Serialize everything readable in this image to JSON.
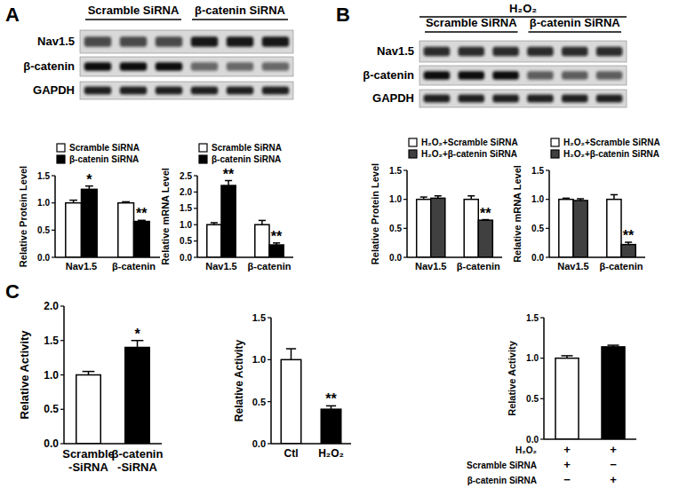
{
  "figure": {
    "panel_labels": [
      "A",
      "B",
      "C"
    ],
    "blots": [
      {
        "groups": [
          "Scramble SiRNA",
          "β-catenin SiRNA"
        ],
        "rows": [
          "Nav1.5",
          "β-catenin",
          "GAPDH"
        ]
      },
      {
        "header": "H₂O₂",
        "groups": [
          "Scramble SiRNA",
          "β-catenin SiRNA"
        ],
        "rows": [
          "Nav1.5",
          "β-catenin",
          "GAPDH"
        ]
      }
    ]
  },
  "chart_data": [
    {
      "type": "bar",
      "ylabel": "Relative Protein Level",
      "categories": [
        "Nav1.5",
        "β-catenin"
      ],
      "series": [
        {
          "name": "Scramble SiRNA",
          "color": "#ffffff",
          "values": [
            1.0,
            1.0
          ],
          "errors": [
            0.05,
            0.02
          ]
        },
        {
          "name": "β-catenin SiRNA",
          "color": "#000000",
          "values": [
            1.25,
            0.66
          ],
          "errors": [
            0.06,
            0.02
          ],
          "significance": [
            "*",
            "**"
          ]
        }
      ],
      "ylim": [
        0,
        1.5
      ],
      "yticks": [
        {
          "value": 0,
          "label": "0.0"
        },
        {
          "value": 0.5,
          "label": "0.5"
        },
        {
          "value": 1,
          "label": "1.0"
        },
        {
          "value": 1.5,
          "label": "1.5"
        }
      ],
      "legend": "upper left"
    },
    {
      "type": "bar",
      "ylabel": "Relative mRNA Level",
      "categories": [
        "Nav1.5",
        "β-catenin"
      ],
      "series": [
        {
          "name": "Scramble SiRNA",
          "color": "#ffffff",
          "values": [
            1.0,
            1.0
          ],
          "errors": [
            0.06,
            0.13
          ]
        },
        {
          "name": "β-catenin SiRNA",
          "color": "#000000",
          "values": [
            2.2,
            0.38
          ],
          "errors": [
            0.15,
            0.06
          ],
          "significance": [
            "**",
            "**"
          ]
        }
      ],
      "ylim": [
        0,
        2.5
      ],
      "yticks": [
        {
          "value": 0,
          "label": "0.0"
        },
        {
          "value": 0.5,
          "label": "0.5"
        },
        {
          "value": 1,
          "label": "1.0"
        },
        {
          "value": 1.5,
          "label": "1.5"
        },
        {
          "value": 2,
          "label": "2.0"
        },
        {
          "value": 2.5,
          "label": "2.5"
        }
      ],
      "legend": "upper left"
    },
    {
      "type": "bar",
      "ylabel": "Relative Protein Level",
      "categories": [
        "Nav1.5",
        "β-catenin"
      ],
      "series": [
        {
          "name": "H₂O₂+Scramble SiRNA",
          "color": "#ffffff",
          "values": [
            1.0,
            1.0
          ],
          "errors": [
            0.04,
            0.06
          ]
        },
        {
          "name": "H₂O₂+β-catenin SiRNA",
          "color": "#404040",
          "values": [
            1.02,
            0.64
          ],
          "errors": [
            0.04,
            0.01
          ],
          "significance": [
            null,
            "**"
          ]
        }
      ],
      "ylim": [
        0,
        1.5
      ],
      "yticks": [
        {
          "value": 0,
          "label": "0.0"
        },
        {
          "value": 0.5,
          "label": "0.5"
        },
        {
          "value": 1,
          "label": "1.0"
        },
        {
          "value": 1.5,
          "label": "1.5"
        }
      ],
      "legend": "upper left"
    },
    {
      "type": "bar",
      "ylabel": "Relative mRNA Level",
      "categories": [
        "Nav1.5",
        "β-catenin"
      ],
      "series": [
        {
          "name": "H₂O₂+Scramble SiRNA",
          "color": "#ffffff",
          "values": [
            1.0,
            1.0
          ],
          "errors": [
            0.02,
            0.08
          ]
        },
        {
          "name": "H₂O₂+β-catenin SiRNA",
          "color": "#404040",
          "values": [
            0.98,
            0.22
          ],
          "errors": [
            0.03,
            0.04
          ],
          "significance": [
            null,
            "**"
          ]
        }
      ],
      "ylim": [
        0,
        1.5
      ],
      "yticks": [
        {
          "value": 0,
          "label": "0.0"
        },
        {
          "value": 0.5,
          "label": "0.5"
        },
        {
          "value": 1,
          "label": "1.0"
        },
        {
          "value": 1.5,
          "label": "1.5"
        }
      ],
      "legend": "upper left"
    },
    {
      "type": "bar",
      "ylabel": "Relative Activity",
      "categories": [
        "Scramble\n-SiRNA",
        "β-catenin\n-SiRNA"
      ],
      "values": [
        1.0,
        1.4
      ],
      "errors": [
        0.05,
        0.1
      ],
      "colors": [
        "#ffffff",
        "#000000"
      ],
      "significance": [
        null,
        "*"
      ],
      "ylim": [
        0,
        2
      ],
      "yticks": [
        {
          "value": 0,
          "label": "0.0"
        },
        {
          "value": 0.5,
          "label": "0.5"
        },
        {
          "value": 1,
          "label": "1.0"
        },
        {
          "value": 1.5,
          "label": "1.5"
        },
        {
          "value": 2,
          "label": "2.0"
        }
      ]
    },
    {
      "type": "bar",
      "ylabel": "Relative  Activity",
      "categories": [
        "Ctl",
        "H₂O₂"
      ],
      "values": [
        1.0,
        0.41
      ],
      "errors": [
        0.13,
        0.04
      ],
      "colors": [
        "#ffffff",
        "#000000"
      ],
      "significance": [
        null,
        "**"
      ],
      "ylim": [
        0,
        1.5
      ],
      "yticks": [
        {
          "value": 0,
          "label": "0.0"
        },
        {
          "value": 0.5,
          "label": "0.5"
        },
        {
          "value": 1,
          "label": "1.0"
        },
        {
          "value": 1.5,
          "label": "1.5"
        }
      ]
    },
    {
      "type": "bar",
      "ylabel": "Relative Activity",
      "categories": [
        null,
        null
      ],
      "values": [
        1.0,
        1.14
      ],
      "errors": [
        0.03,
        0.02
      ],
      "colors": [
        "#ffffff",
        "#000000"
      ],
      "ylim": [
        0,
        1.5
      ],
      "yticks": [
        {
          "value": 0,
          "label": "0.0"
        },
        {
          "value": 0.5,
          "label": "0.5"
        },
        {
          "value": 1,
          "label": "1.0"
        },
        {
          "value": 1.5,
          "label": "1.5"
        }
      ],
      "condition_table": [
        {
          "label": "H₂O₂",
          "marks": [
            "+",
            "+"
          ]
        },
        {
          "label": "Scramble SiRNA",
          "marks": [
            "+",
            "−"
          ]
        },
        {
          "label": "β-catenin SiRNA",
          "marks": [
            "−",
            "+"
          ]
        }
      ]
    }
  ]
}
